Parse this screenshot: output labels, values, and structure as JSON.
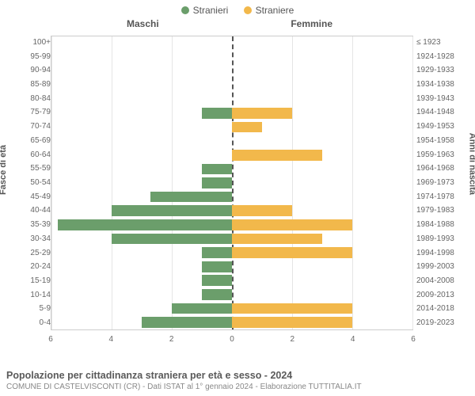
{
  "legend": {
    "male": {
      "label": "Stranieri",
      "color": "#6b9e6b"
    },
    "female": {
      "label": "Straniere",
      "color": "#f2b84b"
    }
  },
  "panels": {
    "left": "Maschi",
    "right": "Femmine"
  },
  "ylabels": {
    "left": "Fasce di età",
    "right": "Anni di nascita"
  },
  "chart": {
    "type": "population-pyramid",
    "xmax": 6,
    "xticks_left": [
      6,
      4,
      2,
      0
    ],
    "xticks_right": [
      0,
      2,
      4,
      6
    ],
    "grid_values": [
      -6,
      -4,
      -2,
      0,
      2,
      4,
      6
    ],
    "background_color": "#ffffff",
    "grid_color": "#e5e5e5",
    "border_color": "#cccccc",
    "center_dash_color": "#555555",
    "bar_height_ratio": 0.78,
    "rows": [
      {
        "age": "100+",
        "birth": "≤ 1923",
        "m": 0,
        "f": 0
      },
      {
        "age": "95-99",
        "birth": "1924-1928",
        "m": 0,
        "f": 0
      },
      {
        "age": "90-94",
        "birth": "1929-1933",
        "m": 0,
        "f": 0
      },
      {
        "age": "85-89",
        "birth": "1934-1938",
        "m": 0,
        "f": 0
      },
      {
        "age": "80-84",
        "birth": "1939-1943",
        "m": 0,
        "f": 0
      },
      {
        "age": "75-79",
        "birth": "1944-1948",
        "m": 1,
        "f": 2
      },
      {
        "age": "70-74",
        "birth": "1949-1953",
        "m": 0,
        "f": 1
      },
      {
        "age": "65-69",
        "birth": "1954-1958",
        "m": 0,
        "f": 0
      },
      {
        "age": "60-64",
        "birth": "1959-1963",
        "m": 0,
        "f": 3
      },
      {
        "age": "55-59",
        "birth": "1964-1968",
        "m": 1,
        "f": 0
      },
      {
        "age": "50-54",
        "birth": "1969-1973",
        "m": 1,
        "f": 0
      },
      {
        "age": "45-49",
        "birth": "1974-1978",
        "m": 2.7,
        "f": 0
      },
      {
        "age": "40-44",
        "birth": "1979-1983",
        "m": 4,
        "f": 2
      },
      {
        "age": "35-39",
        "birth": "1984-1988",
        "m": 5.8,
        "f": 4
      },
      {
        "age": "30-34",
        "birth": "1989-1993",
        "m": 4,
        "f": 3
      },
      {
        "age": "25-29",
        "birth": "1994-1998",
        "m": 1,
        "f": 4
      },
      {
        "age": "20-24",
        "birth": "1999-2003",
        "m": 1,
        "f": 0
      },
      {
        "age": "15-19",
        "birth": "2004-2008",
        "m": 1,
        "f": 0
      },
      {
        "age": "10-14",
        "birth": "2009-2013",
        "m": 1,
        "f": 0
      },
      {
        "age": "5-9",
        "birth": "2014-2018",
        "m": 2,
        "f": 4
      },
      {
        "age": "0-4",
        "birth": "2019-2023",
        "m": 3,
        "f": 4
      }
    ]
  },
  "footer": {
    "title": "Popolazione per cittadinanza straniera per età e sesso - 2024",
    "subtitle": "COMUNE DI CASTELVISCONTI (CR) - Dati ISTAT al 1° gennaio 2024 - Elaborazione TUTTITALIA.IT"
  }
}
